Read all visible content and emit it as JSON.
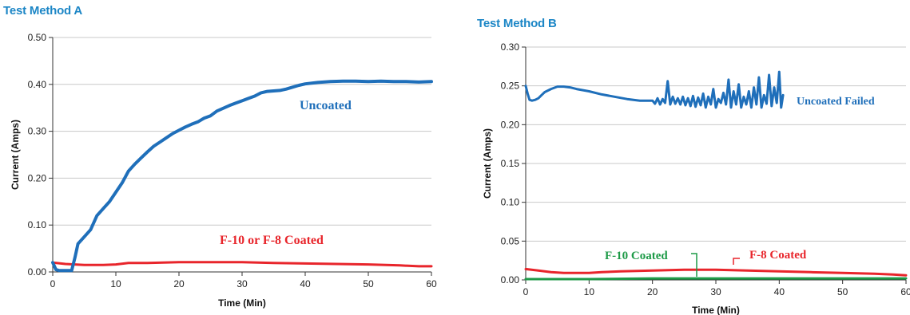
{
  "titles": {
    "left": "Test Method A",
    "right": "Test Method B"
  },
  "colors": {
    "title": "#1c86c6",
    "uncoated": "#1f6fba",
    "coated_red": "#e8252b",
    "coated_green": "#1d9a47",
    "grid": "#c8c8c8"
  },
  "chart_data": [
    {
      "type": "line",
      "title": "Test Method A",
      "xlabel": "Time (Min)",
      "ylabel": "Current (Amps)",
      "xlim": [
        0,
        60
      ],
      "ylim": [
        0,
        0.5
      ],
      "xticks": [
        0,
        10,
        20,
        30,
        40,
        50,
        60
      ],
      "yticks": [
        0,
        0.1,
        0.2,
        0.3,
        0.4,
        0.5
      ],
      "xtick_labels": [
        "0",
        "10",
        "20",
        "30",
        "40",
        "50",
        "60"
      ],
      "ytick_labels": [
        "0.00",
        "0.10",
        "0.20",
        "0.30",
        "0.40",
        "0.50"
      ],
      "grid": "horizontal",
      "series": [
        {
          "name": "Uncoated",
          "color": "#1f6fba",
          "x": [
            0,
            0.5,
            1,
            2,
            3,
            3.5,
            4,
            5,
            6,
            7,
            8,
            9,
            10,
            11,
            12,
            13,
            14,
            15,
            16,
            17,
            18,
            19,
            20,
            21,
            22,
            23,
            24,
            25,
            26,
            27,
            28,
            29,
            30,
            31,
            32,
            33,
            34,
            35,
            36,
            37,
            38,
            39,
            40,
            42,
            44,
            46,
            48,
            50,
            52,
            54,
            56,
            58,
            60
          ],
          "y": [
            0.02,
            0.005,
            0.003,
            0.003,
            0.003,
            0.03,
            0.06,
            0.075,
            0.09,
            0.12,
            0.135,
            0.15,
            0.17,
            0.19,
            0.215,
            0.23,
            0.243,
            0.256,
            0.268,
            0.277,
            0.286,
            0.295,
            0.302,
            0.309,
            0.315,
            0.32,
            0.328,
            0.333,
            0.343,
            0.349,
            0.355,
            0.36,
            0.365,
            0.37,
            0.375,
            0.382,
            0.385,
            0.386,
            0.387,
            0.39,
            0.394,
            0.398,
            0.401,
            0.404,
            0.406,
            0.407,
            0.407,
            0.406,
            0.407,
            0.406,
            0.406,
            0.405,
            0.406
          ]
        },
        {
          "name": "F-10 or F-8 Coated",
          "color": "#e8252b",
          "x": [
            0,
            2,
            5,
            8,
            10,
            12,
            15,
            20,
            25,
            30,
            35,
            40,
            45,
            50,
            55,
            58,
            60
          ],
          "y": [
            0.02,
            0.017,
            0.015,
            0.015,
            0.016,
            0.019,
            0.019,
            0.021,
            0.021,
            0.021,
            0.019,
            0.018,
            0.017,
            0.016,
            0.014,
            0.012,
            0.012
          ]
        }
      ],
      "annotations": [
        {
          "text": "Uncoated",
          "color": "#1f6fba"
        },
        {
          "text": "F-10 or F-8 Coated",
          "color": "#e8252b"
        }
      ]
    },
    {
      "type": "line",
      "title": "Test Method B",
      "xlabel": "Time (Min)",
      "ylabel": "Current (Amps)",
      "xlim": [
        0,
        60
      ],
      "ylim": [
        0,
        0.3
      ],
      "xticks": [
        0,
        10,
        20,
        30,
        40,
        50,
        60
      ],
      "yticks": [
        0,
        0.05,
        0.1,
        0.15,
        0.2,
        0.25,
        0.3
      ],
      "xtick_labels": [
        "0",
        "10",
        "20",
        "30",
        "40",
        "50",
        "60"
      ],
      "ytick_labels": [
        "0.00",
        "0.05",
        "0.10",
        "0.15",
        "0.20",
        "0.25",
        "0.30"
      ],
      "grid": "horizontal",
      "series": [
        {
          "name": "Uncoated Failed",
          "color": "#1f6fba",
          "x": [
            0,
            0.3,
            0.6,
            1,
            1.5,
            2,
            2.5,
            3,
            4,
            5,
            6,
            7,
            8,
            10,
            12,
            14,
            16,
            18,
            20,
            20.4,
            20.8,
            21.2,
            21.6,
            22,
            22.4,
            22.8,
            23.2,
            23.6,
            24,
            24.4,
            24.8,
            25.2,
            25.6,
            26,
            26.4,
            26.8,
            27.2,
            27.6,
            28,
            28.4,
            28.8,
            29.2,
            29.6,
            30,
            30.4,
            30.8,
            31.2,
            31.6,
            32,
            32.4,
            32.8,
            33.2,
            33.6,
            34,
            34.4,
            34.8,
            35.2,
            35.6,
            36,
            36.4,
            36.8,
            37.2,
            37.6,
            38,
            38.4,
            38.8,
            39.2,
            39.6,
            40,
            40.3,
            40.6
          ],
          "y": [
            0.25,
            0.24,
            0.232,
            0.231,
            0.232,
            0.234,
            0.238,
            0.242,
            0.246,
            0.249,
            0.249,
            0.248,
            0.246,
            0.243,
            0.239,
            0.236,
            0.233,
            0.231,
            0.231,
            0.227,
            0.234,
            0.226,
            0.233,
            0.228,
            0.256,
            0.226,
            0.236,
            0.227,
            0.234,
            0.226,
            0.236,
            0.225,
            0.234,
            0.224,
            0.237,
            0.223,
            0.235,
            0.225,
            0.24,
            0.222,
            0.236,
            0.226,
            0.246,
            0.222,
            0.233,
            0.228,
            0.241,
            0.226,
            0.258,
            0.222,
            0.243,
            0.226,
            0.252,
            0.222,
            0.236,
            0.226,
            0.243,
            0.222,
            0.248,
            0.226,
            0.261,
            0.222,
            0.238,
            0.227,
            0.264,
            0.224,
            0.248,
            0.228,
            0.268,
            0.222,
            0.238
          ]
        },
        {
          "name": "F-8 Coated",
          "color": "#e8252b",
          "x": [
            0,
            2,
            4,
            6,
            8,
            10,
            12,
            15,
            20,
            25,
            30,
            35,
            40,
            45,
            50,
            55,
            58,
            60
          ],
          "y": [
            0.014,
            0.012,
            0.01,
            0.009,
            0.009,
            0.009,
            0.01,
            0.011,
            0.012,
            0.013,
            0.013,
            0.012,
            0.011,
            0.01,
            0.009,
            0.008,
            0.007,
            0.006
          ]
        },
        {
          "name": "F-10 Coated",
          "color": "#1d9a47",
          "x": [
            0,
            10,
            20,
            30,
            40,
            50,
            60
          ],
          "y": [
            0.001,
            0.001,
            0.002,
            0.002,
            0.002,
            0.002,
            0.002
          ]
        }
      ],
      "annotations": [
        {
          "text": "Uncoated Failed",
          "color": "#1f6fba"
        },
        {
          "text": "F-10 Coated",
          "color": "#1d9a47"
        },
        {
          "text": "F-8 Coated",
          "color": "#e8252b"
        }
      ]
    }
  ]
}
